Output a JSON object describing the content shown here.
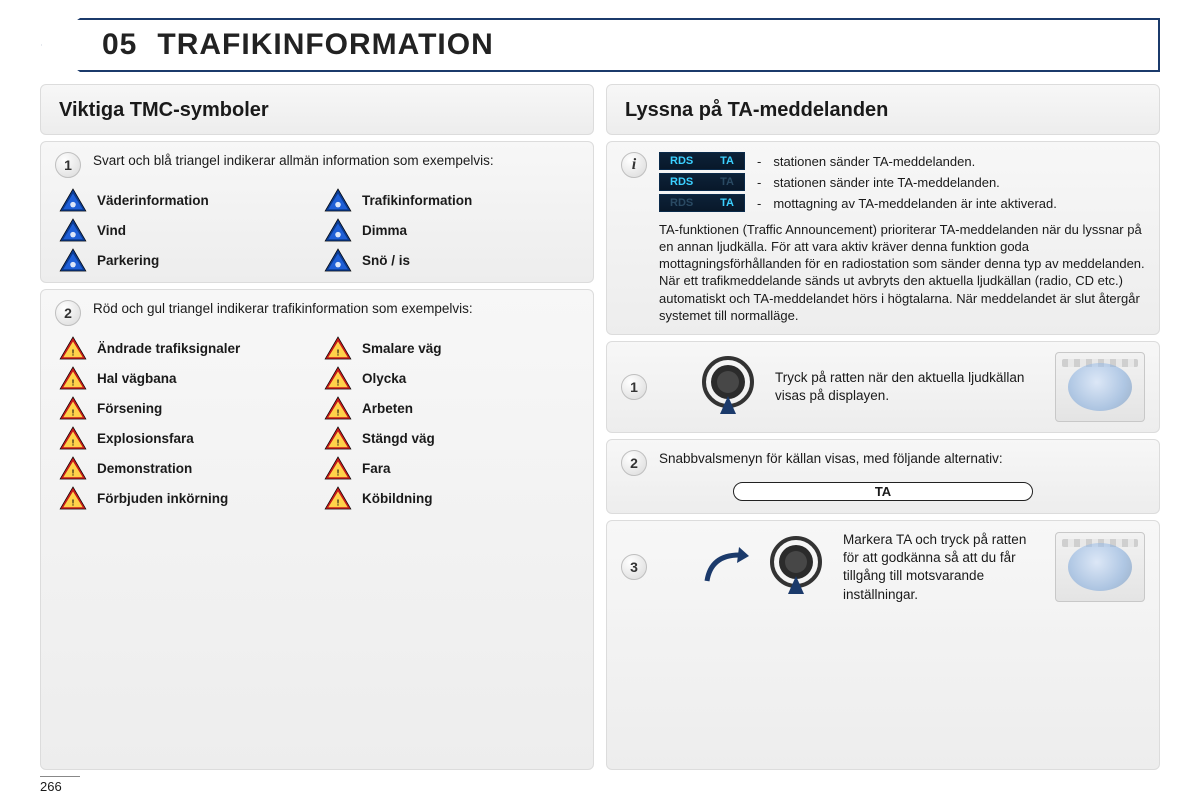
{
  "page_number": "266",
  "title_number": "05",
  "title_text": "TRAFIKINFORMATION",
  "colors": {
    "border": "#1b3a6b",
    "panel_bg_top": "#f7f7f7",
    "panel_bg_bottom": "#ededed",
    "blue_tri_outer": "#0b3a8f",
    "warn_outer": "#c61a1a",
    "warn_inner": "#ffd24a",
    "rds_bg": "#0d2238",
    "rds_on": "#3bd0ff",
    "rds_off": "#2a4a63"
  },
  "left": {
    "heading": "Viktiga TMC-symboler",
    "section1": {
      "badge": "1",
      "intro": "Svart och blå triangel indikerar allmän information som exempelvis:",
      "items": [
        {
          "label": "Väderinformation"
        },
        {
          "label": "Trafikinformation"
        },
        {
          "label": "Vind"
        },
        {
          "label": "Dimma"
        },
        {
          "label": "Parkering"
        },
        {
          "label": "Snö / is"
        }
      ]
    },
    "section2": {
      "badge": "2",
      "intro": "Röd och gul triangel indikerar trafikinformation som exempelvis:",
      "items": [
        {
          "label": "Ändrade trafiksignaler"
        },
        {
          "label": "Smalare väg"
        },
        {
          "label": "Hal vägbana"
        },
        {
          "label": "Olycka"
        },
        {
          "label": "Försening"
        },
        {
          "label": "Arbeten"
        },
        {
          "label": "Explosionsfara"
        },
        {
          "label": "Stängd väg"
        },
        {
          "label": "Demonstration"
        },
        {
          "label": "Fara"
        },
        {
          "label": "Förbjuden inkörning"
        },
        {
          "label": "Köbildning"
        }
      ]
    }
  },
  "right": {
    "heading": "Lyssna på TA-meddelanden",
    "info": {
      "rds_label": "RDS",
      "ta_label": "TA",
      "rows": [
        {
          "rds": true,
          "ta": true,
          "text": "stationen sänder TA-meddelanden."
        },
        {
          "rds": true,
          "ta": false,
          "text": "stationen sänder inte TA-meddelanden."
        },
        {
          "rds": false,
          "ta": true,
          "text": "mottagning av TA-meddelanden är inte aktiverad."
        }
      ],
      "desc": "TA-funktionen (Traffic Announcement) prioriterar TA-meddelanden när du lyssnar på en annan ljudkälla. För att vara aktiv kräver denna funktion goda mottagningsförhållanden för en radiostation som sänder denna typ av meddelanden. När ett trafikmeddelande sänds ut avbryts den aktuella ljudkällan (radio, CD etc.) automatiskt och TA-meddelandet hörs i högtalarna. När meddelandet är slut återgår systemet till normalläge."
    },
    "step1": {
      "badge": "1",
      "text": "Tryck på ratten när den aktuella ljudkällan visas på displayen."
    },
    "step2": {
      "badge": "2",
      "text": "Snabbvalsmenyn för källan visas, med följande alternativ:",
      "pill": "TA"
    },
    "step3": {
      "badge": "3",
      "text": "Markera TA och tryck på ratten för att godkänna så att du får tillgång till motsvarande inställningar."
    }
  }
}
